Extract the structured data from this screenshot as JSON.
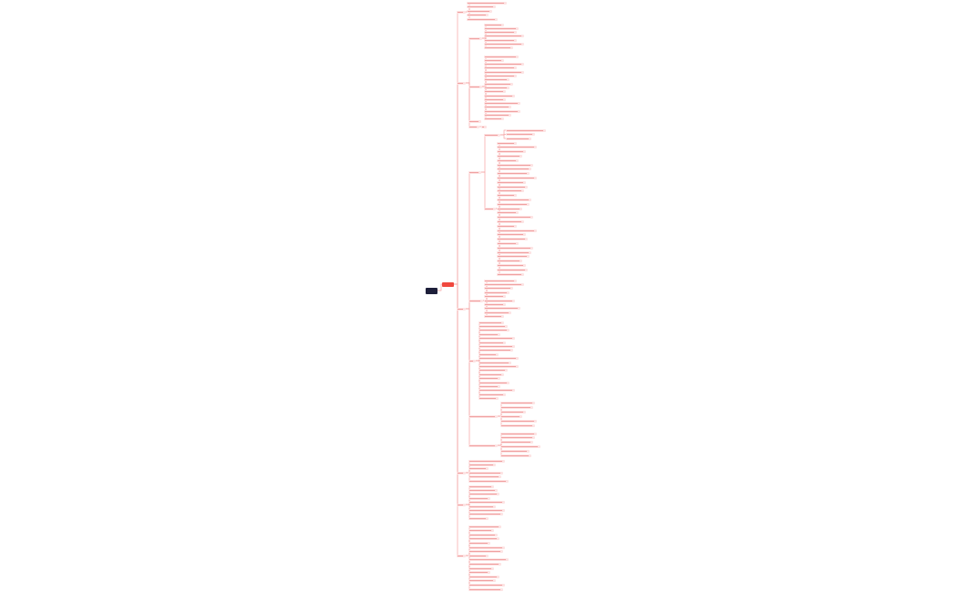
{
  "colors": {
    "background": "#ffffff",
    "root_fill": "#1d1f3a",
    "central_fill": "#f0483e",
    "node_fill": "#fde3e3",
    "node_text": "#e66a6a",
    "line": "#f5a3a3"
  }
}
